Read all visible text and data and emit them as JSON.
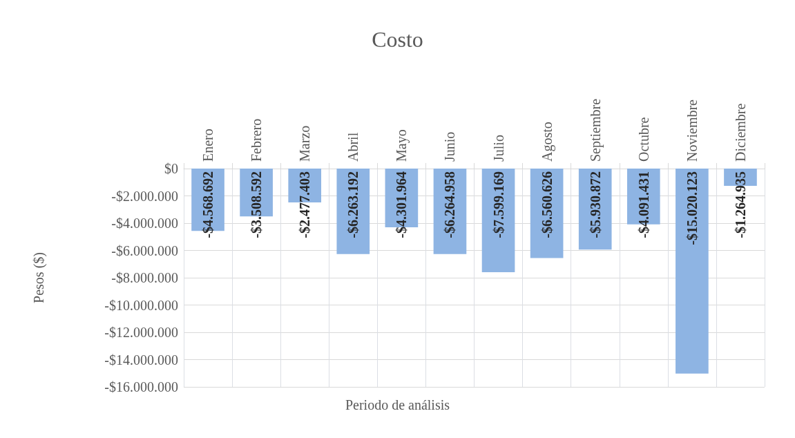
{
  "chart_data": {
    "type": "bar",
    "title": "Costo",
    "xlabel": "Periodo de análisis",
    "ylabel": "Pesos ($)",
    "categories": [
      "Enero",
      "Febrero",
      "Marzo",
      "Abril",
      "Mayo",
      "Junio",
      "Julio",
      "Agosto",
      "Septiembre",
      "Octubre",
      "Noviembre",
      "Diciembre"
    ],
    "values": [
      -4568692,
      -3508592,
      -2477403,
      -6263192,
      -4301964,
      -6264958,
      -7599169,
      -6560626,
      -5930872,
      -4091431,
      -15020123,
      -1264935
    ],
    "value_labels": [
      "-$4.568.692",
      "-$3.508.592",
      "-$2.477.403",
      "-$6.263.192",
      "-$4.301.964",
      "-$6.264.958",
      "-$7.599.169",
      "-$6.560.626",
      "-$5.930.872",
      "-$4.091.431",
      "-$15.020.123",
      "-$1.264.935"
    ],
    "color": "#8eb4e3",
    "ylim": [
      -16000000,
      0
    ],
    "yticks": [
      {
        "value": 0,
        "label": "$0"
      },
      {
        "value": -2000000,
        "label": "-$2.000.000"
      },
      {
        "value": -4000000,
        "label": "-$4.000.000"
      },
      {
        "value": -6000000,
        "label": "-$6.000.000"
      },
      {
        "value": -8000000,
        "label": "-$8.000.000"
      },
      {
        "value": -10000000,
        "label": "-$10.000.000"
      },
      {
        "value": -12000000,
        "label": "-$12.000.000"
      },
      {
        "value": -14000000,
        "label": "-$14.000.000"
      },
      {
        "value": -16000000,
        "label": "-$16.000.000"
      }
    ],
    "grid": true
  }
}
